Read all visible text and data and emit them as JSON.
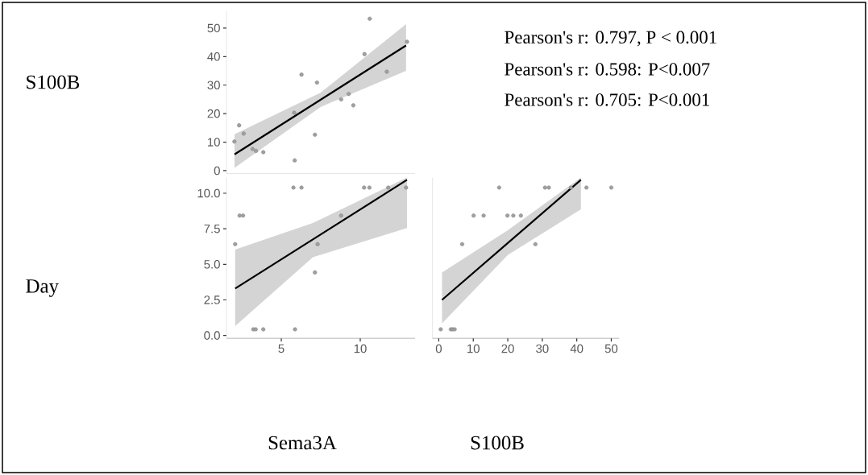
{
  "chart_data": [
    {
      "type": "scatter",
      "ylabel": "S100B",
      "xlim": [
        1.53,
        13.47
      ],
      "ylim": [
        -1,
        56
      ],
      "yticks": [
        0,
        10,
        20,
        30,
        40,
        50
      ],
      "tick_labels": "y",
      "annotations": [
        "Pearson's r: 0.797, P < 0.001",
        "Pearson's r: 0.598: P<0.007",
        "Pearson's r: 0.705: P<0.001"
      ],
      "series": [
        {
          "type": "line",
          "color": "#000000",
          "marker": "none",
          "x": [
            2.04,
            7.5,
            12.9
          ],
          "values": [
            5.7,
            24.9,
            43.9
          ],
          "lower": [
            1.0,
            22.4,
            35.0
          ],
          "upper": [
            12.8,
            27.4,
            51.4
          ]
        },
        {
          "color": "#a0a0a0",
          "marker": "circle",
          "x": [
            2.03,
            2.33,
            2.62,
            3.18,
            3.4,
            3.86,
            5.85,
            5.82,
            6.28,
            7.13,
            7.26,
            8.79,
            9.27,
            9.56,
            10.27,
            10.6,
            11.68,
            12.96
          ],
          "values": [
            10.2,
            15.9,
            13,
            7.6,
            6.9,
            6.5,
            3.6,
            20.3,
            33.7,
            12.6,
            30.9,
            25,
            26.9,
            22.9,
            40.9,
            53.3,
            34.7,
            45.2
          ]
        }
      ]
    },
    {
      "type": "scatter",
      "ylabel": "Day",
      "xlabel": "Sema3A",
      "xlim": [
        1.53,
        13.47
      ],
      "ylim": [
        -0.2,
        11.1
      ],
      "xticks": [
        5,
        10
      ],
      "yticks": [
        {
          "value": 0,
          "label": "0.0"
        },
        {
          "value": 2.5,
          "label": "2.5"
        },
        {
          "value": 5,
          "label": "5.0"
        },
        {
          "value": 7.5,
          "label": "7.5"
        },
        {
          "value": 10,
          "label": "10.0"
        }
      ],
      "series": [
        {
          "type": "line",
          "color": "#000000",
          "marker": "none",
          "x": [
            2.08,
            7.0,
            12.96
          ],
          "values": [
            3.3,
            6.75,
            10.94
          ],
          "lower": [
            0.66,
            5.5,
            7.55
          ],
          "upper": [
            6.04,
            7.9,
            11.1
          ]
        },
        {
          "color": "#a0a0a0",
          "marker": "circle",
          "x": [
            2.08,
            2.36,
            2.58,
            3.23,
            3.38,
            3.86,
            5.77,
            6.28,
            5.87,
            7.13,
            7.3,
            8.79,
            10.24,
            10.58,
            11.77,
            12.9
          ],
          "values": [
            6.42,
            8.43,
            8.43,
            0.43,
            0.43,
            0.43,
            10.4,
            10.4,
            0.43,
            4.43,
            6.42,
            8.43,
            10.4,
            10.4,
            10.4,
            10.4
          ]
        }
      ]
    },
    {
      "type": "scatter",
      "xlabel": "S100B",
      "xlim": [
        -1.8,
        52.3
      ],
      "ylim": [
        -0.2,
        11.1
      ],
      "xticks": [
        0,
        10,
        20,
        30,
        40,
        50
      ],
      "tick_labels": "x",
      "series": [
        {
          "type": "line",
          "color": "#000000",
          "marker": "none",
          "x": [
            0.94,
            20,
            41.2
          ],
          "values": [
            2.5,
            6.5,
            10.94
          ],
          "lower": [
            0.85,
            5.66,
            8.87
          ],
          "upper": [
            4.43,
            7.4,
            11.1
          ]
        },
        {
          "color": "#a0a0a0",
          "marker": "circle",
          "x": [
            0.56,
            3.5,
            4.0,
            4.6,
            6.78,
            10.1,
            13.0,
            17.5,
            19.9,
            21.6,
            23.8,
            28.0,
            30.8,
            31.9,
            38.3,
            42.8,
            50.0
          ],
          "values": [
            0.43,
            0.43,
            0.43,
            0.43,
            6.42,
            8.43,
            8.43,
            10.4,
            8.43,
            8.43,
            8.43,
            6.42,
            10.4,
            10.4,
            10.4,
            10.4,
            10.4
          ]
        }
      ]
    }
  ]
}
